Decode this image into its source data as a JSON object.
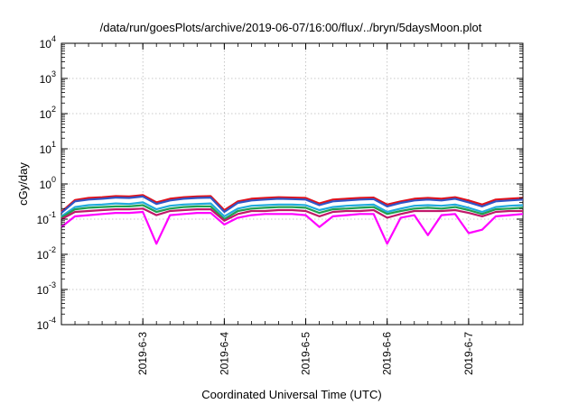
{
  "chart_data": {
    "type": "line",
    "title": "/data/run/goesPlots/archive/2019-06-07/16:00/flux/../bryn/5daysMoon.plot",
    "xlabel": "Coordinated Universal Time (UTC)",
    "ylabel": "cGy/day",
    "xlim": [
      "2019-06-02T00:00",
      "2019-06-07T16:00"
    ],
    "x_ticks": [
      "2019-6-3",
      "2019-6-4",
      "2019-6-5",
      "2019-6-6",
      "2019-6-7"
    ],
    "yscale": "log",
    "ylim": [
      0.0001,
      10000
    ],
    "y_ticks": [
      {
        "base": "10",
        "exp": "-4"
      },
      {
        "base": "10",
        "exp": "-3"
      },
      {
        "base": "10",
        "exp": "-2"
      },
      {
        "base": "10",
        "exp": "-1"
      },
      {
        "base": "10",
        "exp": "0"
      },
      {
        "base": "10",
        "exp": "1"
      },
      {
        "base": "10",
        "exp": "2"
      },
      {
        "base": "10",
        "exp": "3"
      },
      {
        "base": "10",
        "exp": "4"
      }
    ],
    "grid": true,
    "x": [
      "2019-06-02T00:00",
      "2019-06-02T04:00",
      "2019-06-02T08:00",
      "2019-06-02T12:00",
      "2019-06-02T16:00",
      "2019-06-02T20:00",
      "2019-06-03T00:00",
      "2019-06-03T04:00",
      "2019-06-03T08:00",
      "2019-06-03T12:00",
      "2019-06-03T16:00",
      "2019-06-03T20:00",
      "2019-06-04T00:00",
      "2019-06-04T04:00",
      "2019-06-04T08:00",
      "2019-06-04T12:00",
      "2019-06-04T16:00",
      "2019-06-04T20:00",
      "2019-06-05T00:00",
      "2019-06-05T04:00",
      "2019-06-05T08:00",
      "2019-06-05T12:00",
      "2019-06-05T16:00",
      "2019-06-05T20:00",
      "2019-06-06T00:00",
      "2019-06-06T04:00",
      "2019-06-06T08:00",
      "2019-06-06T12:00",
      "2019-06-06T16:00",
      "2019-06-06T20:00",
      "2019-06-07T00:00",
      "2019-06-07T04:00",
      "2019-06-07T08:00",
      "2019-06-07T12:00",
      "2019-06-07T16:00"
    ],
    "series": [
      {
        "color": "#e0101a",
        "values": [
          0.16,
          0.35,
          0.4,
          0.42,
          0.45,
          0.44,
          0.48,
          0.3,
          0.38,
          0.42,
          0.44,
          0.45,
          0.18,
          0.32,
          0.38,
          0.4,
          0.42,
          0.41,
          0.4,
          0.28,
          0.36,
          0.38,
          0.4,
          0.41,
          0.26,
          0.32,
          0.38,
          0.4,
          0.38,
          0.42,
          0.34,
          0.26,
          0.36,
          0.38,
          0.4
        ]
      },
      {
        "color": "#2f56c8",
        "values": [
          0.15,
          0.32,
          0.36,
          0.38,
          0.41,
          0.4,
          0.44,
          0.27,
          0.34,
          0.38,
          0.4,
          0.41,
          0.16,
          0.29,
          0.34,
          0.36,
          0.38,
          0.37,
          0.36,
          0.25,
          0.32,
          0.34,
          0.36,
          0.37,
          0.23,
          0.29,
          0.34,
          0.36,
          0.34,
          0.38,
          0.3,
          0.23,
          0.32,
          0.34,
          0.36
        ]
      },
      {
        "color": "#22aadc",
        "values": [
          0.12,
          0.22,
          0.25,
          0.26,
          0.28,
          0.27,
          0.3,
          0.19,
          0.24,
          0.26,
          0.27,
          0.28,
          0.12,
          0.2,
          0.24,
          0.25,
          0.26,
          0.26,
          0.25,
          0.18,
          0.22,
          0.24,
          0.25,
          0.26,
          0.16,
          0.2,
          0.24,
          0.25,
          0.24,
          0.26,
          0.21,
          0.16,
          0.22,
          0.24,
          0.25
        ]
      },
      {
        "color": "#20a050",
        "values": [
          0.11,
          0.19,
          0.21,
          0.22,
          0.23,
          0.23,
          0.25,
          0.16,
          0.2,
          0.22,
          0.23,
          0.23,
          0.1,
          0.17,
          0.2,
          0.21,
          0.22,
          0.22,
          0.21,
          0.15,
          0.19,
          0.2,
          0.21,
          0.22,
          0.14,
          0.17,
          0.2,
          0.21,
          0.2,
          0.22,
          0.18,
          0.14,
          0.19,
          0.2,
          0.21
        ]
      },
      {
        "color": "#c0186a",
        "values": [
          0.1,
          0.16,
          0.17,
          0.18,
          0.19,
          0.19,
          0.2,
          0.13,
          0.17,
          0.18,
          0.19,
          0.19,
          0.09,
          0.14,
          0.17,
          0.17,
          0.18,
          0.18,
          0.17,
          0.12,
          0.16,
          0.17,
          0.17,
          0.18,
          0.11,
          0.14,
          0.17,
          0.17,
          0.17,
          0.18,
          0.15,
          0.12,
          0.16,
          0.17,
          0.17
        ]
      },
      {
        "color": "#ff00ff",
        "values": [
          0.06,
          0.12,
          0.13,
          0.14,
          0.15,
          0.15,
          0.16,
          0.02,
          0.13,
          0.14,
          0.15,
          0.15,
          0.07,
          0.11,
          0.13,
          0.14,
          0.14,
          0.14,
          0.13,
          0.06,
          0.12,
          0.13,
          0.14,
          0.14,
          0.02,
          0.11,
          0.13,
          0.035,
          0.13,
          0.14,
          0.04,
          0.05,
          0.12,
          0.13,
          0.14
        ]
      }
    ]
  }
}
